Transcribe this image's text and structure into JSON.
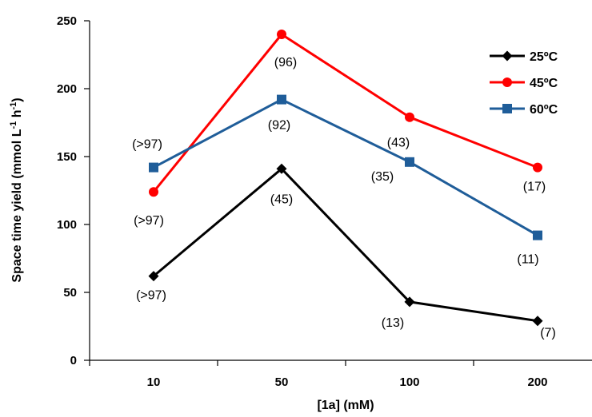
{
  "chart_data": {
    "type": "line",
    "xlabel": "[1a] (mM)",
    "ylabel_main": "Space time yield (mmol L",
    "ylabel_sup1": "-1",
    "ylabel_mid": " h",
    "ylabel_sup2": "-1",
    "ylabel_end": ")",
    "categories": [
      "10",
      "50",
      "100",
      "200"
    ],
    "ylim": [
      0,
      250
    ],
    "yticks": [
      "0",
      "50",
      "100",
      "150",
      "200",
      "250"
    ],
    "grid": false,
    "legend_position": "top-right",
    "series": [
      {
        "name": "25ºC",
        "color": "#000000",
        "marker": "diamond",
        "values": [
          62,
          141,
          43,
          29
        ],
        "labels": [
          "(>97)",
          "(45)",
          "(13)",
          "(7)"
        ]
      },
      {
        "name": "45ºC",
        "color": "#ff0000",
        "marker": "circle",
        "values": [
          124,
          240,
          179,
          142
        ],
        "labels": [
          "(>97)",
          "(96)",
          "(43)",
          "(17)"
        ]
      },
      {
        "name": "60ºC",
        "color": "#1f5d99",
        "marker": "square",
        "values": [
          142,
          192,
          146,
          92
        ],
        "labels": [
          "(>97)",
          "(92)",
          "(35)",
          "(11)"
        ]
      }
    ]
  }
}
